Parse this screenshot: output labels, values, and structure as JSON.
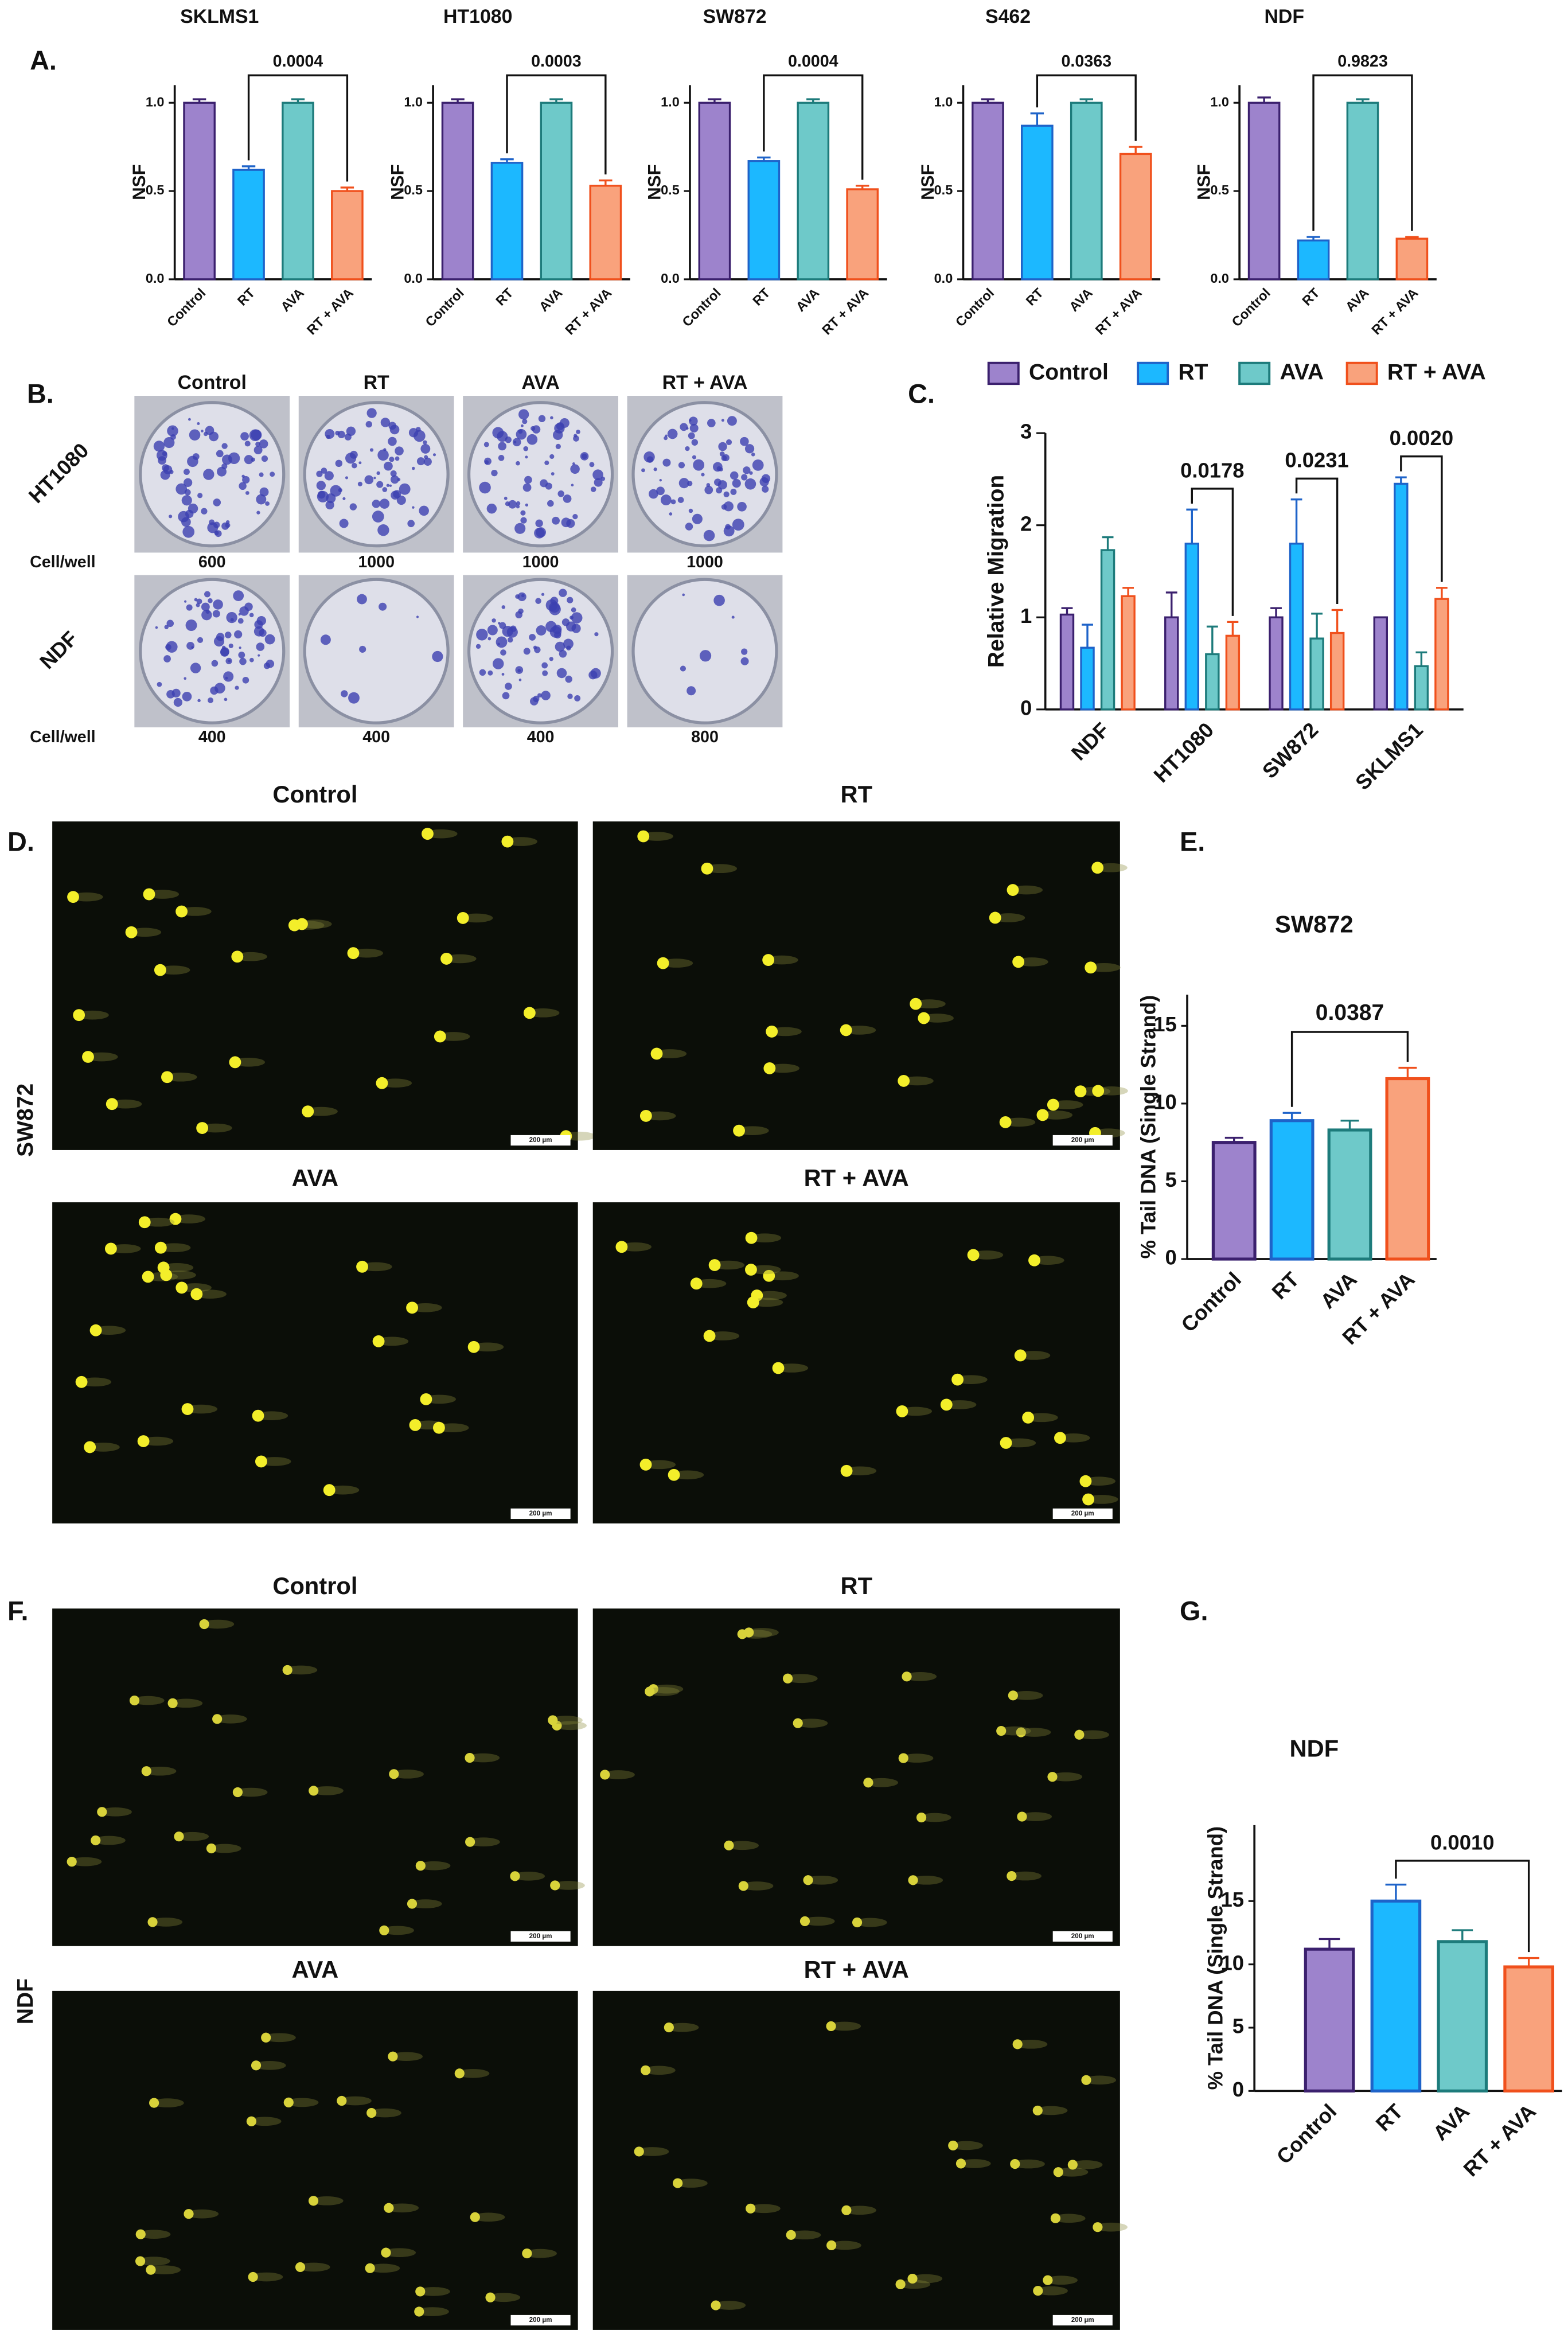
{
  "panel_labels": [
    "A.",
    "B.",
    "C.",
    "D.",
    "E.",
    "F.",
    "G."
  ],
  "chart_data": [
    {
      "type": "bar",
      "title": "SKLMS1",
      "y_label": "NSF",
      "categories": [
        "Control",
        "RT",
        "AVA",
        "RT + AVA"
      ],
      "values": [
        1.0,
        0.62,
        1.0,
        0.5
      ],
      "errors": [
        0.02,
        0.02,
        0.02,
        0.02
      ],
      "colors": [
        "#9d83cc",
        "#1cb8ff",
        "#6ec9c9",
        "#f9a27c"
      ],
      "edge_colors": [
        "#3b206e",
        "#1e63c9",
        "#1d7b7b",
        "#f0501c"
      ],
      "ylim": [
        0,
        1.1
      ],
      "yticks": [
        {
          "value": 0,
          "label": "0.0"
        },
        {
          "value": 0.5,
          "label": "0.5"
        },
        {
          "value": 1,
          "label": "1.0"
        }
      ],
      "comparisons": [
        {
          "bars": [
            1,
            3
          ],
          "label": "0.0004"
        }
      ]
    },
    {
      "type": "bar",
      "title": "HT1080",
      "y_label": "NSF",
      "categories": [
        "Control",
        "RT",
        "AVA",
        "RT + AVA"
      ],
      "values": [
        1.0,
        0.66,
        1.0,
        0.53
      ],
      "errors": [
        0.02,
        0.02,
        0.02,
        0.03
      ],
      "colors": [
        "#9d83cc",
        "#1cb8ff",
        "#6ec9c9",
        "#f9a27c"
      ],
      "edge_colors": [
        "#3b206e",
        "#1e63c9",
        "#1d7b7b",
        "#f0501c"
      ],
      "ylim": [
        0,
        1.1
      ],
      "yticks": [
        {
          "value": 0,
          "label": "0.0"
        },
        {
          "value": 0.5,
          "label": "0.5"
        },
        {
          "value": 1,
          "label": "1.0"
        }
      ],
      "comparisons": [
        {
          "bars": [
            1,
            3
          ],
          "label": "0.0003"
        }
      ]
    },
    {
      "type": "bar",
      "title": "SW872",
      "y_label": "NSF",
      "categories": [
        "Control",
        "RT",
        "AVA",
        "RT + AVA"
      ],
      "values": [
        1.0,
        0.67,
        1.0,
        0.51
      ],
      "errors": [
        0.02,
        0.02,
        0.02,
        0.02
      ],
      "colors": [
        "#9d83cc",
        "#1cb8ff",
        "#6ec9c9",
        "#f9a27c"
      ],
      "edge_colors": [
        "#3b206e",
        "#1e63c9",
        "#1d7b7b",
        "#f0501c"
      ],
      "ylim": [
        0,
        1.1
      ],
      "yticks": [
        {
          "value": 0,
          "label": "0.0"
        },
        {
          "value": 0.5,
          "label": "0.5"
        },
        {
          "value": 1,
          "label": "1.0"
        }
      ],
      "comparisons": [
        {
          "bars": [
            1,
            3
          ],
          "label": "0.0004"
        }
      ]
    },
    {
      "type": "bar",
      "title": "S462",
      "y_label": "NSF",
      "categories": [
        "Control",
        "RT",
        "AVA",
        "RT + AVA"
      ],
      "values": [
        1.0,
        0.87,
        1.0,
        0.71
      ],
      "errors": [
        0.02,
        0.07,
        0.02,
        0.04
      ],
      "colors": [
        "#9d83cc",
        "#1cb8ff",
        "#6ec9c9",
        "#f9a27c"
      ],
      "edge_colors": [
        "#3b206e",
        "#1e63c9",
        "#1d7b7b",
        "#f0501c"
      ],
      "ylim": [
        0,
        1.1
      ],
      "yticks": [
        {
          "value": 0,
          "label": "0.0"
        },
        {
          "value": 0.5,
          "label": "0.5"
        },
        {
          "value": 1,
          "label": "1.0"
        }
      ],
      "comparisons": [
        {
          "bars": [
            1,
            3
          ],
          "label": "0.0363"
        }
      ]
    },
    {
      "type": "bar",
      "title": "NDF",
      "y_label": "NSF",
      "categories": [
        "Control",
        "RT",
        "AVA",
        "RT + AVA"
      ],
      "values": [
        1.0,
        0.22,
        1.0,
        0.23
      ],
      "errors": [
        0.03,
        0.02,
        0.02,
        0.01
      ],
      "colors": [
        "#9d83cc",
        "#1cb8ff",
        "#6ec9c9",
        "#f9a27c"
      ],
      "edge_colors": [
        "#3b206e",
        "#1e63c9",
        "#1d7b7b",
        "#f0501c"
      ],
      "ylim": [
        0,
        1.1
      ],
      "yticks": [
        {
          "value": 0,
          "label": "0.0"
        },
        {
          "value": 0.5,
          "label": "0.5"
        },
        {
          "value": 1,
          "label": "1.0"
        }
      ],
      "comparisons": [
        {
          "bars": [
            1,
            3
          ],
          "label": "0.9823"
        }
      ]
    },
    {
      "type": "grouped_bar",
      "y_label": "Relative Migration",
      "categories": [
        "NDF",
        "HT1080",
        "SW872",
        "SKLMS1"
      ],
      "series": [
        {
          "name": "Control",
          "color": "#9d83cc",
          "edge_color": "#3b206e",
          "values": [
            1.03,
            1.0,
            1.0,
            1.0
          ],
          "errors": [
            0.07,
            0.27,
            0.1,
            0.0
          ]
        },
        {
          "name": "RT",
          "color": "#1cb8ff",
          "edge_color": "#1e63c9",
          "values": [
            0.67,
            1.8,
            1.8,
            2.45
          ],
          "errors": [
            0.25,
            0.37,
            0.48,
            0.07
          ]
        },
        {
          "name": "AVA",
          "color": "#6ec9c9",
          "edge_color": "#1d7b7b",
          "values": [
            1.73,
            0.6,
            0.77,
            0.47
          ],
          "errors": [
            0.14,
            0.3,
            0.27,
            0.15
          ]
        },
        {
          "name": "RT + AVA",
          "color": "#f9a27c",
          "edge_color": "#f0501c",
          "values": [
            1.23,
            0.8,
            0.83,
            1.2
          ],
          "errors": [
            0.09,
            0.15,
            0.25,
            0.12
          ]
        }
      ],
      "ylim": [
        0,
        3
      ],
      "yticks": [
        0,
        1,
        2,
        3
      ],
      "comparisons": [
        {
          "category": 1,
          "series": [
            1,
            3
          ],
          "label": "0.0178"
        },
        {
          "category": 2,
          "series": [
            1,
            3
          ],
          "label": "0.0231"
        },
        {
          "category": 3,
          "series": [
            1,
            3
          ],
          "label": "0.0020"
        }
      ]
    },
    {
      "type": "bar",
      "title": "SW872",
      "y_label": "% Tail DNA (Single Strand)",
      "categories": [
        "Control",
        "RT",
        "AVA",
        "RT + AVA"
      ],
      "values": [
        7.5,
        8.9,
        8.3,
        11.6
      ],
      "errors": [
        0.3,
        0.5,
        0.6,
        0.7
      ],
      "colors": [
        "#9d83cc",
        "#1cb8ff",
        "#6ec9c9",
        "#f9a27c"
      ],
      "edge_colors": [
        "#3b206e",
        "#1e63c9",
        "#1d7b7b",
        "#f0501c"
      ],
      "ylim": [
        0,
        17
      ],
      "yticks": [
        0,
        5,
        10,
        15
      ],
      "comparisons": [
        {
          "bars": [
            1,
            3
          ],
          "label": "0.0387"
        }
      ]
    },
    {
      "type": "bar",
      "title": "NDF",
      "y_label": "% Tail DNA (Single Strand)",
      "categories": [
        "Control",
        "RT",
        "AVA",
        "RT + AVA"
      ],
      "values": [
        11.2,
        15.0,
        11.8,
        9.8
      ],
      "errors": [
        0.8,
        1.3,
        0.9,
        0.7
      ],
      "colors": [
        "#9d83cc",
        "#1cb8ff",
        "#6ec9c9",
        "#f9a27c"
      ],
      "edge_colors": [
        "#3b206e",
        "#1e63c9",
        "#1d7b7b",
        "#f0501c"
      ],
      "ylim": [
        0,
        21
      ],
      "yticks": [
        0,
        5,
        10,
        15
      ],
      "comparisons": [
        {
          "bars": [
            1,
            3
          ],
          "label": "0.0010"
        }
      ]
    }
  ],
  "colony_assay": {
    "titles": [
      "Control",
      "RT",
      "AVA",
      "RT + AVA"
    ],
    "rows": [
      {
        "label": "HT1080",
        "seeding_label": "Cell/well",
        "seeding": [
          600,
          1000,
          1000,
          1000
        ]
      },
      {
        "label": "NDF",
        "seeding_label": "Cell/well",
        "seeding": [
          400,
          400,
          400,
          800
        ]
      }
    ]
  },
  "comet_assays": [
    {
      "row_label": "SW872",
      "titles": [
        "Control",
        "RT",
        "AVA",
        "RT + AVA"
      ],
      "scale_bar": "200 µm"
    },
    {
      "row_label": "NDF",
      "titles": [
        "Control",
        "RT",
        "AVA",
        "RT + AVA"
      ],
      "scale_bar": "200 µm"
    }
  ]
}
